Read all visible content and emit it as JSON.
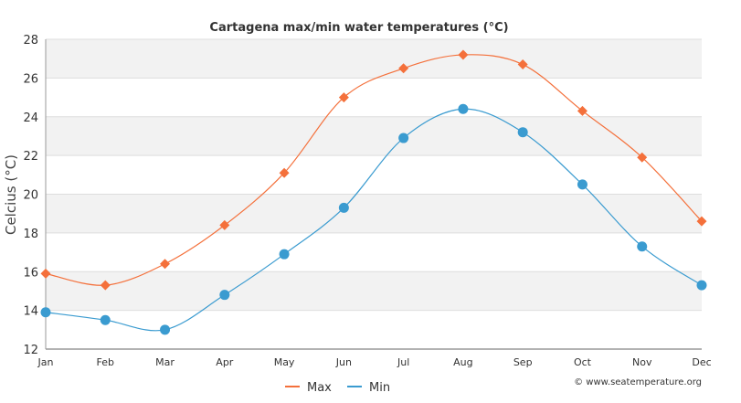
{
  "chart_data": {
    "type": "line",
    "title": "Cartagena max/min water temperatures (°C)",
    "ylabel": "Celcius (°C)",
    "xlabel": "",
    "categories": [
      "Jan",
      "Feb",
      "Mar",
      "Apr",
      "May",
      "Jun",
      "Jul",
      "Aug",
      "Sep",
      "Oct",
      "Nov",
      "Dec"
    ],
    "ylim": [
      12,
      28
    ],
    "yticks": [
      12,
      14,
      16,
      18,
      20,
      22,
      24,
      26,
      28
    ],
    "grid": true,
    "legend_position": "bottom-center",
    "series": [
      {
        "name": "Max",
        "color": "#f4703b",
        "marker": "diamond",
        "values": [
          15.9,
          15.3,
          16.4,
          18.4,
          21.1,
          25.0,
          26.5,
          27.2,
          26.7,
          24.3,
          21.9,
          18.6
        ]
      },
      {
        "name": "Min",
        "color": "#3a9bd0",
        "marker": "circle",
        "values": [
          13.9,
          13.5,
          13.0,
          14.8,
          16.9,
          19.3,
          22.9,
          24.4,
          23.2,
          20.5,
          17.3,
          15.3
        ]
      }
    ],
    "credit": "© www.seatemperature.org"
  }
}
